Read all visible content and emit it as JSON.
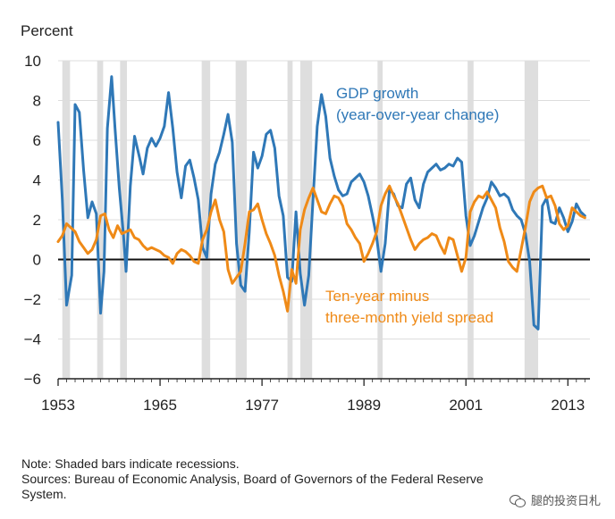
{
  "figure": {
    "y_unit_label": "Percent",
    "gdp_label_line1": "GDP growth",
    "gdp_label_line2": "(year-over-year change)",
    "spread_label_line1": "Ten-year minus",
    "spread_label_line2": "three-month yield spread",
    "note_line1": "Note: Shaded bars indicate recessions.",
    "note_line2": "Sources: Bureau of Economic Analysis, Board of Governors of the Federal Reserve",
    "note_line3": "System.",
    "watermark_text": "腿的投资日札"
  },
  "chart_data": {
    "type": "line",
    "title": "",
    "xlabel": "",
    "ylabel": "Percent",
    "xlim": [
      1953,
      2015.6
    ],
    "ylim": [
      -6,
      10
    ],
    "x_ticks": [
      1953,
      1965,
      1977,
      1989,
      2001,
      2013
    ],
    "y_ticks": [
      10,
      8,
      6,
      4,
      2,
      0,
      -2,
      -4,
      -6
    ],
    "grid": true,
    "legend": "inline labels",
    "recessions": [
      [
        1953.5,
        1954.4
      ],
      [
        1957.6,
        1958.3
      ],
      [
        1960.3,
        1961.1
      ],
      [
        1969.9,
        1970.9
      ],
      [
        1973.9,
        1975.2
      ],
      [
        1980.0,
        1980.6
      ],
      [
        1981.5,
        1982.9
      ],
      [
        1990.6,
        1991.2
      ],
      [
        2001.2,
        2001.9
      ],
      [
        2007.9,
        2009.5
      ]
    ],
    "series": [
      {
        "name": "GDP growth (year-over-year change)",
        "color": "#2f78b7",
        "x": [
          1953.0,
          1953.5,
          1954.0,
          1954.6,
          1955.0,
          1955.5,
          1956.0,
          1956.5,
          1957.0,
          1957.5,
          1958.0,
          1958.4,
          1958.8,
          1959.3,
          1959.7,
          1960.2,
          1960.7,
          1961.0,
          1961.5,
          1962.0,
          1962.6,
          1963.0,
          1963.5,
          1964.0,
          1964.5,
          1965.0,
          1965.5,
          1966.0,
          1966.5,
          1967.0,
          1967.5,
          1968.0,
          1968.5,
          1969.0,
          1969.5,
          1970.0,
          1970.5,
          1971.0,
          1971.5,
          1972.0,
          1972.5,
          1973.0,
          1973.5,
          1974.0,
          1974.5,
          1975.0,
          1975.5,
          1976.0,
          1976.5,
          1977.0,
          1977.5,
          1978.0,
          1978.5,
          1979.0,
          1979.5,
          1980.0,
          1980.5,
          1981.0,
          1981.5,
          1982.0,
          1982.5,
          1983.0,
          1983.5,
          1984.0,
          1984.5,
          1985.0,
          1985.5,
          1986.0,
          1986.5,
          1987.0,
          1987.5,
          1988.0,
          1988.5,
          1989.0,
          1989.5,
          1990.0,
          1990.5,
          1991.0,
          1991.5,
          1992.0,
          1992.5,
          1993.0,
          1993.5,
          1994.0,
          1994.5,
          1995.0,
          1995.5,
          1996.0,
          1996.5,
          1997.0,
          1997.5,
          1998.0,
          1998.5,
          1999.0,
          1999.5,
          2000.0,
          2000.5,
          2001.0,
          2001.5,
          2002.0,
          2002.5,
          2003.0,
          2003.5,
          2004.0,
          2004.5,
          2005.0,
          2005.5,
          2006.0,
          2006.5,
          2007.0,
          2007.5,
          2008.0,
          2008.5,
          2009.0,
          2009.5,
          2010.0,
          2010.5,
          2011.0,
          2011.5,
          2012.0,
          2012.5,
          2013.0,
          2013.5,
          2014.0,
          2014.5,
          2015.0
        ],
        "values": [
          6.9,
          3.0,
          -2.3,
          -0.8,
          7.8,
          7.4,
          4.5,
          2.1,
          2.9,
          2.3,
          -2.7,
          -0.6,
          6.6,
          9.2,
          6.6,
          3.6,
          1.2,
          -0.6,
          3.7,
          6.2,
          5.1,
          4.3,
          5.6,
          6.1,
          5.7,
          6.1,
          6.7,
          8.4,
          6.6,
          4.4,
          3.1,
          4.7,
          5.0,
          4.1,
          3.0,
          0.6,
          0.1,
          3.3,
          4.8,
          5.4,
          6.3,
          7.3,
          5.9,
          0.8,
          -1.3,
          -1.6,
          1.4,
          5.4,
          4.6,
          5.2,
          6.3,
          6.5,
          5.6,
          3.2,
          2.2,
          -0.9,
          -1.1,
          2.4,
          -0.7,
          -2.3,
          -0.8,
          3.0,
          6.7,
          8.3,
          7.2,
          5.1,
          4.2,
          3.5,
          3.2,
          3.3,
          3.9,
          4.1,
          4.3,
          3.9,
          3.2,
          2.2,
          1.1,
          -0.6,
          0.8,
          3.5,
          3.3,
          2.7,
          2.6,
          3.8,
          4.1,
          3.0,
          2.6,
          3.8,
          4.4,
          4.6,
          4.8,
          4.5,
          4.6,
          4.8,
          4.7,
          5.1,
          4.9,
          2.2,
          0.7,
          1.2,
          1.9,
          2.6,
          3.1,
          3.9,
          3.6,
          3.2,
          3.3,
          3.1,
          2.5,
          2.2,
          2.0,
          1.3,
          -0.1,
          -3.3,
          -3.5,
          2.7,
          3.1,
          1.9,
          1.8,
          2.6,
          2.1,
          1.4,
          1.9,
          2.8,
          2.4,
          2.2
        ]
      },
      {
        "name": "Ten-year minus three-month yield spread",
        "color": "#ef8a17",
        "x": [
          1953.0,
          1953.5,
          1954.0,
          1954.5,
          1955.0,
          1955.5,
          1956.0,
          1956.5,
          1957.0,
          1957.5,
          1958.0,
          1958.5,
          1959.0,
          1959.5,
          1960.0,
          1960.5,
          1961.0,
          1961.5,
          1962.0,
          1962.5,
          1963.0,
          1963.5,
          1964.0,
          1964.5,
          1965.0,
          1965.5,
          1966.0,
          1966.5,
          1967.0,
          1967.5,
          1968.0,
          1968.5,
          1969.0,
          1969.5,
          1970.0,
          1970.5,
          1971.0,
          1971.5,
          1972.0,
          1972.5,
          1973.0,
          1973.5,
          1974.0,
          1974.5,
          1975.0,
          1975.5,
          1976.0,
          1976.5,
          1977.0,
          1977.5,
          1978.0,
          1978.5,
          1979.0,
          1979.5,
          1980.0,
          1980.5,
          1981.0,
          1981.5,
          1982.0,
          1982.5,
          1983.0,
          1983.5,
          1984.0,
          1984.5,
          1985.0,
          1985.5,
          1986.0,
          1986.5,
          1987.0,
          1987.5,
          1988.0,
          1988.5,
          1989.0,
          1989.5,
          1990.0,
          1990.5,
          1991.0,
          1991.5,
          1992.0,
          1992.5,
          1993.0,
          1993.5,
          1994.0,
          1994.5,
          1995.0,
          1995.5,
          1996.0,
          1996.5,
          1997.0,
          1997.5,
          1998.0,
          1998.5,
          1999.0,
          1999.5,
          2000.0,
          2000.5,
          2001.0,
          2001.5,
          2002.0,
          2002.5,
          2003.0,
          2003.5,
          2004.0,
          2004.5,
          2005.0,
          2005.5,
          2006.0,
          2006.5,
          2007.0,
          2007.5,
          2008.0,
          2008.5,
          2009.0,
          2009.5,
          2010.0,
          2010.5,
          2011.0,
          2011.5,
          2012.0,
          2012.5,
          2013.0,
          2013.5,
          2014.0,
          2014.5,
          2015.0
        ],
        "values": [
          0.9,
          1.2,
          1.8,
          1.6,
          1.4,
          0.9,
          0.6,
          0.3,
          0.5,
          1.0,
          2.2,
          2.3,
          1.5,
          1.1,
          1.7,
          1.3,
          1.4,
          1.5,
          1.1,
          1.0,
          0.7,
          0.5,
          0.6,
          0.5,
          0.4,
          0.2,
          0.1,
          -0.2,
          0.3,
          0.5,
          0.4,
          0.2,
          -0.1,
          -0.2,
          1.0,
          1.5,
          2.4,
          3.0,
          2.0,
          1.4,
          -0.5,
          -1.2,
          -0.9,
          -0.6,
          0.8,
          2.4,
          2.5,
          2.8,
          2.0,
          1.3,
          0.8,
          0.2,
          -0.8,
          -1.6,
          -2.6,
          -0.5,
          -1.2,
          1.5,
          2.5,
          3.1,
          3.6,
          3.0,
          2.4,
          2.3,
          2.8,
          3.2,
          3.1,
          2.7,
          1.8,
          1.5,
          1.1,
          0.8,
          -0.1,
          0.3,
          0.8,
          1.4,
          2.7,
          3.3,
          3.7,
          3.2,
          2.8,
          2.2,
          1.6,
          1.0,
          0.5,
          0.8,
          1.0,
          1.1,
          1.3,
          1.2,
          0.7,
          0.3,
          1.1,
          1.0,
          0.2,
          -0.6,
          0.1,
          2.4,
          2.9,
          3.2,
          3.1,
          3.4,
          3.0,
          2.6,
          1.6,
          0.9,
          -0.1,
          -0.4,
          -0.6,
          0.5,
          1.6,
          2.9,
          3.4,
          3.6,
          3.7,
          3.1,
          3.2,
          2.7,
          1.8,
          1.5,
          1.7,
          2.6,
          2.4,
          2.2,
          2.1
        ]
      }
    ]
  }
}
